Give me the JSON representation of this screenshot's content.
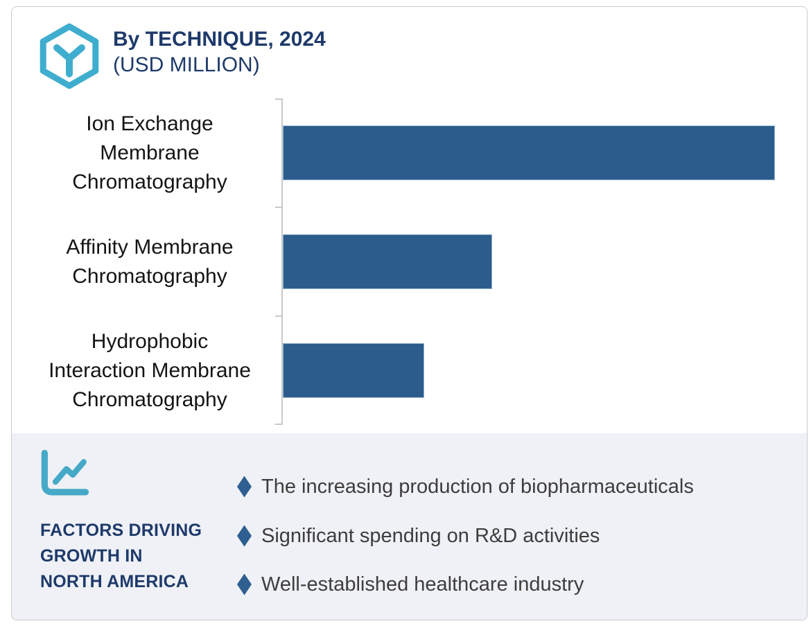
{
  "header": {
    "title": "By TECHNIQUE, 2024",
    "subtitle": "(USD MILLION)",
    "logo_icon": "hexagon-y-logo"
  },
  "chart_data": {
    "type": "bar",
    "orientation": "horizontal",
    "title": "By TECHNIQUE, 2024",
    "subtitle": "(USD MILLION)",
    "categories": [
      "Ion Exchange Membrane Chromatography",
      "Affinity Membrane Chromatography",
      "Hydrophobic Interaction Membrane Chromatography"
    ],
    "categories_wrapped": [
      "Ion Exchange\nMembrane\nChromatography",
      "Affinity Membrane\nChromatography",
      "Hydrophobic\nInteraction Membrane\nChromatography"
    ],
    "values_relative_pct": [
      100,
      42.6,
      28.8
    ],
    "axis_numeric_labels_shown": false,
    "value_labels_shown": false,
    "grid": false,
    "legend": false,
    "bar_color": "#2c5c8c",
    "axis_color": "#c9c9c9"
  },
  "factors": {
    "icon": "line-chart-icon",
    "heading": "FACTORS DRIVING\nGROWTH IN\nNORTH AMERICA",
    "bullet_icon": "diamond-bullet",
    "items": [
      "The increasing production of biopharmaceuticals",
      "Significant spending on R&D activities",
      "Well-established healthcare industry"
    ]
  },
  "colors": {
    "teal_accent": "#3fadce",
    "navy_text": "#1e3a6a",
    "bar_blue": "#2c5c8c",
    "bullet_diamond": "#2e5f90",
    "panel_background": "#eff1f6",
    "body_text": "#3d3d3d",
    "axis_gray": "#c9c9c9",
    "card_border": "#c9cace"
  }
}
